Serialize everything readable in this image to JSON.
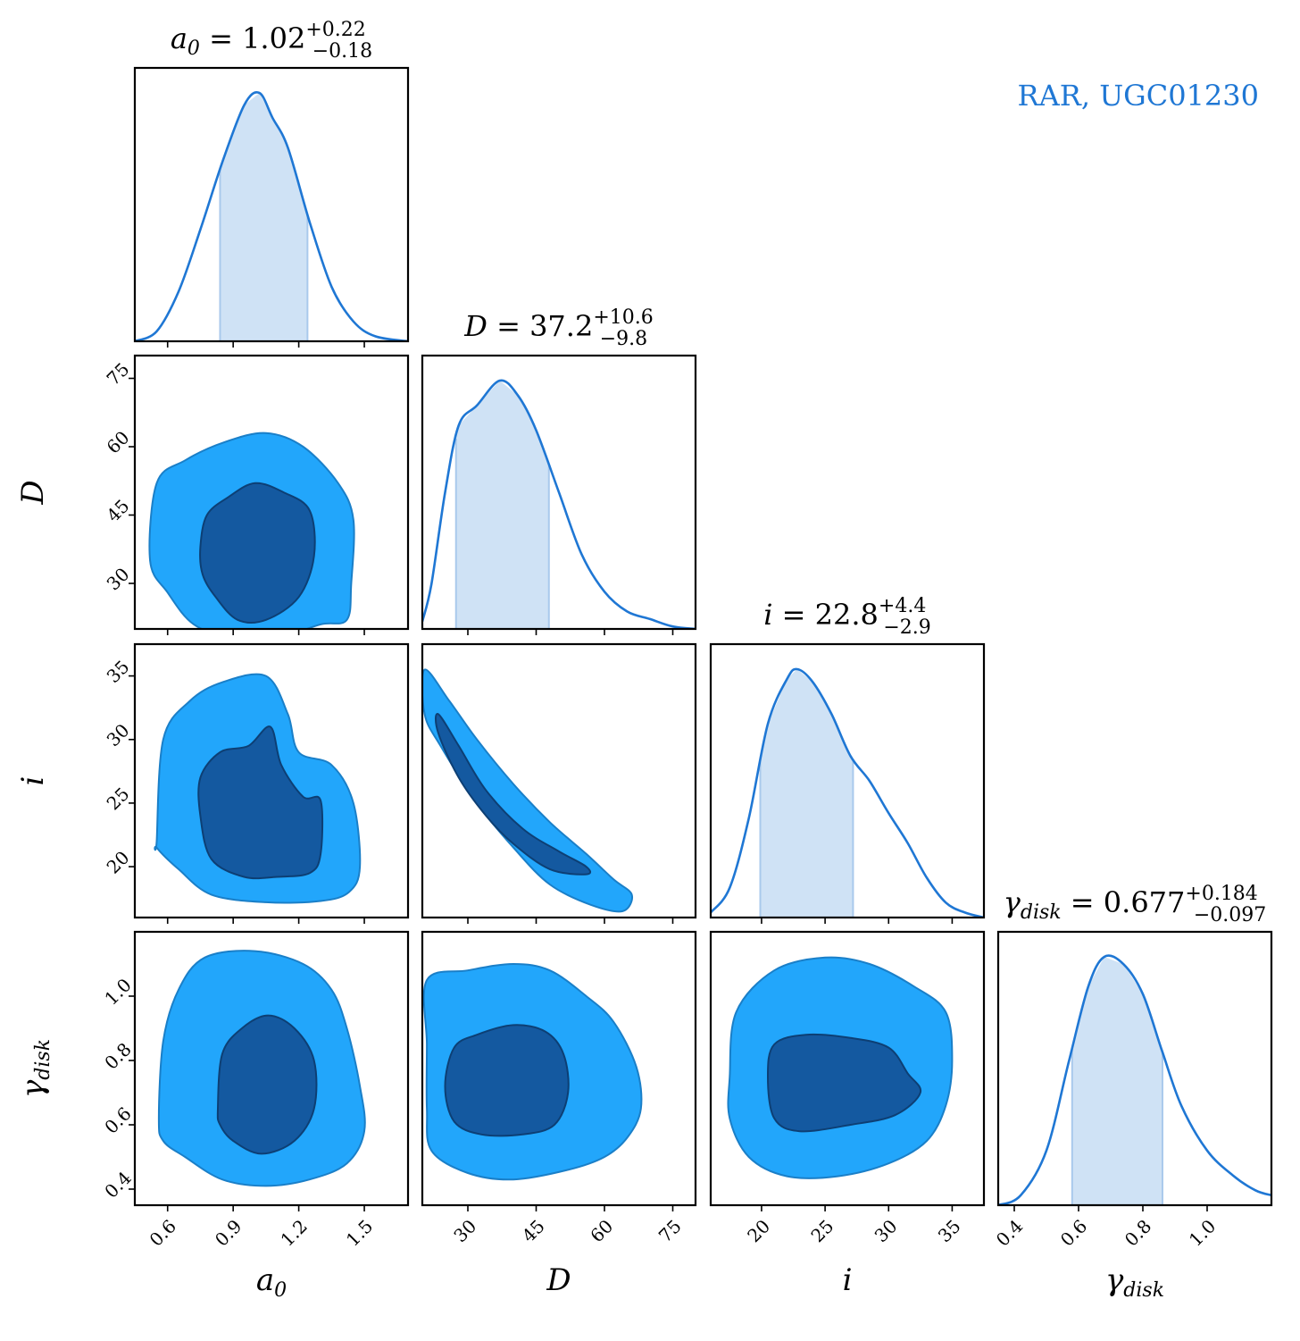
{
  "colors": {
    "accent": "#1f77d4",
    "fill_light": "#cfe2f5",
    "contour_outer": "#22a6fb",
    "contour_inner": "#1459a0",
    "contour_inner_edge": "#0d3f74"
  },
  "annotation": "RAR, UGC01230",
  "chart_data": {
    "type": "corner",
    "parameters": [
      {
        "id": "a0",
        "label_base": "a",
        "label_sub": "0",
        "median": "1.02",
        "plus": "+0.22",
        "minus": "−0.18",
        "range": [
          0.45,
          1.7
        ],
        "ticks": [
          0.6,
          0.9,
          1.2,
          1.5
        ],
        "tick_labels": [
          "0.6",
          "0.9",
          "1.2",
          "1.5"
        ]
      },
      {
        "id": "D",
        "label_base": "D",
        "label_sub": "",
        "median": "37.2",
        "plus": "+10.6",
        "minus": "−9.8",
        "range": [
          20,
          80
        ],
        "ticks": [
          30,
          45,
          60,
          75
        ],
        "tick_labels": [
          "30",
          "45",
          "60",
          "75"
        ]
      },
      {
        "id": "i",
        "label_base": "i",
        "label_sub": "",
        "median": "22.8",
        "plus": "+4.4",
        "minus": "−2.9",
        "range": [
          16,
          37.5
        ],
        "ticks": [
          20,
          25,
          30,
          35
        ],
        "tick_labels": [
          "20",
          "25",
          "30",
          "35"
        ]
      },
      {
        "id": "gamma_disk",
        "label_base": "γ",
        "label_sub": "disk",
        "median": "0.677",
        "plus": "+0.184",
        "minus": "−0.097",
        "range": [
          0.35,
          1.2
        ],
        "ticks": [
          0.4,
          0.6,
          0.8,
          1.0
        ],
        "tick_labels": [
          "0.4",
          "0.6",
          "0.8",
          "1.0"
        ]
      }
    ],
    "marginals": [
      {
        "param": "a0",
        "x": [
          0.45,
          0.55,
          0.65,
          0.75,
          0.85,
          0.95,
          1.02,
          1.08,
          1.15,
          1.25,
          1.35,
          1.45,
          1.55,
          1.7
        ],
        "density": [
          0.0,
          0.04,
          0.2,
          0.45,
          0.72,
          0.95,
          1.0,
          0.9,
          0.78,
          0.48,
          0.22,
          0.08,
          0.02,
          0.0
        ],
        "band": [
          0.84,
          1.24
        ]
      },
      {
        "param": "D",
        "x": [
          20,
          22,
          25,
          28,
          32,
          37,
          41,
          45,
          50,
          55,
          60,
          65,
          70,
          75,
          80
        ],
        "density": [
          0.03,
          0.18,
          0.55,
          0.82,
          0.9,
          1.0,
          0.94,
          0.8,
          0.55,
          0.3,
          0.15,
          0.07,
          0.04,
          0.01,
          0.0
        ],
        "band": [
          27.4,
          47.8
        ]
      },
      {
        "param": "i",
        "x": [
          16,
          17.5,
          19,
          20.5,
          22,
          22.8,
          24,
          25.5,
          27,
          28.5,
          30,
          31.5,
          33,
          34.5,
          36,
          37.5
        ],
        "density": [
          0.02,
          0.12,
          0.4,
          0.78,
          0.96,
          1.0,
          0.95,
          0.82,
          0.65,
          0.55,
          0.42,
          0.3,
          0.16,
          0.06,
          0.02,
          0.0
        ],
        "band": [
          19.9,
          27.2
        ]
      },
      {
        "param": "gamma_disk",
        "x": [
          0.35,
          0.42,
          0.5,
          0.57,
          0.63,
          0.68,
          0.74,
          0.8,
          0.86,
          0.92,
          1.0,
          1.08,
          1.15,
          1.2
        ],
        "density": [
          0.0,
          0.04,
          0.22,
          0.58,
          0.88,
          1.0,
          0.97,
          0.85,
          0.62,
          0.4,
          0.22,
          0.12,
          0.06,
          0.04
        ],
        "band": [
          0.58,
          0.861
        ]
      }
    ],
    "contours": [
      {
        "x": "a0",
        "y": "D",
        "outer": [
          [
            0.52,
            35
          ],
          [
            0.55,
            52
          ],
          [
            0.68,
            57
          ],
          [
            0.86,
            61
          ],
          [
            1.05,
            63
          ],
          [
            1.22,
            60
          ],
          [
            1.38,
            52
          ],
          [
            1.45,
            44
          ],
          [
            1.44,
            30
          ],
          [
            1.42,
            22
          ],
          [
            1.3,
            21
          ],
          [
            1.1,
            18
          ],
          [
            0.9,
            18
          ],
          [
            0.72,
            21
          ],
          [
            0.6,
            28
          ]
        ],
        "inner": [
          [
            0.75,
            38
          ],
          [
            0.78,
            45
          ],
          [
            0.88,
            49
          ],
          [
            1.0,
            52
          ],
          [
            1.13,
            50
          ],
          [
            1.25,
            46
          ],
          [
            1.27,
            36
          ],
          [
            1.2,
            27
          ],
          [
            1.05,
            22
          ],
          [
            0.92,
            22
          ],
          [
            0.82,
            27
          ],
          [
            0.76,
            32
          ]
        ]
      },
      {
        "x": "a0",
        "y": "i",
        "outer": [
          [
            0.55,
            22
          ],
          [
            0.58,
            30
          ],
          [
            0.7,
            33
          ],
          [
            0.85,
            34.5
          ],
          [
            1.05,
            35
          ],
          [
            1.15,
            32
          ],
          [
            1.2,
            29
          ],
          [
            1.35,
            28
          ],
          [
            1.45,
            25
          ],
          [
            1.48,
            20
          ],
          [
            1.43,
            18
          ],
          [
            1.3,
            17.3
          ],
          [
            1.05,
            17.2
          ],
          [
            0.8,
            17.8
          ],
          [
            0.65,
            19.8
          ],
          [
            0.55,
            21.5
          ]
        ],
        "inner": [
          [
            0.75,
            27
          ],
          [
            0.84,
            29
          ],
          [
            0.97,
            29.5
          ],
          [
            1.07,
            31
          ],
          [
            1.12,
            28
          ],
          [
            1.22,
            25.5
          ],
          [
            1.3,
            25.2
          ],
          [
            1.3,
            21
          ],
          [
            1.25,
            19.5
          ],
          [
            1.1,
            19.2
          ],
          [
            0.95,
            19.2
          ],
          [
            0.8,
            20.6
          ],
          [
            0.75,
            24
          ]
        ]
      },
      {
        "x": "D",
        "y": "i",
        "outer": [
          [
            20.5,
            35.5
          ],
          [
            26,
            33
          ],
          [
            32,
            30
          ],
          [
            40,
            26.5
          ],
          [
            48,
            23.5
          ],
          [
            56,
            21
          ],
          [
            62,
            19
          ],
          [
            66,
            17.8
          ],
          [
            64,
            16.5
          ],
          [
            57,
            17
          ],
          [
            48,
            18.6
          ],
          [
            40,
            21.5
          ],
          [
            32,
            25
          ],
          [
            24,
            29.5
          ],
          [
            20.5,
            32
          ]
        ],
        "inner": [
          [
            23.5,
            32
          ],
          [
            28,
            29.5
          ],
          [
            34,
            26
          ],
          [
            42,
            23
          ],
          [
            50,
            21.2
          ],
          [
            56,
            20
          ],
          [
            56,
            19.4
          ],
          [
            48,
            19.8
          ],
          [
            40,
            21.8
          ],
          [
            34,
            24
          ],
          [
            28,
            27
          ],
          [
            23.5,
            30.5
          ]
        ]
      },
      {
        "x": "a0",
        "y": "gamma_disk",
        "outer": [
          [
            0.56,
            0.62
          ],
          [
            0.58,
            0.86
          ],
          [
            0.65,
            1.02
          ],
          [
            0.77,
            1.12
          ],
          [
            1.0,
            1.14
          ],
          [
            1.22,
            1.1
          ],
          [
            1.35,
            1.02
          ],
          [
            1.42,
            0.9
          ],
          [
            1.48,
            0.72
          ],
          [
            1.5,
            0.58
          ],
          [
            1.42,
            0.48
          ],
          [
            1.25,
            0.43
          ],
          [
            1.05,
            0.41
          ],
          [
            0.85,
            0.43
          ],
          [
            0.68,
            0.5
          ],
          [
            0.58,
            0.55
          ]
        ],
        "inner": [
          [
            0.83,
            0.65
          ],
          [
            0.85,
            0.82
          ],
          [
            0.94,
            0.9
          ],
          [
            1.06,
            0.94
          ],
          [
            1.18,
            0.9
          ],
          [
            1.27,
            0.8
          ],
          [
            1.27,
            0.65
          ],
          [
            1.18,
            0.55
          ],
          [
            1.03,
            0.51
          ],
          [
            0.9,
            0.55
          ],
          [
            0.84,
            0.6
          ]
        ]
      },
      {
        "x": "D",
        "y": "gamma_disk",
        "outer": [
          [
            21,
            0.85
          ],
          [
            21,
            1.05
          ],
          [
            30,
            1.08
          ],
          [
            40,
            1.1
          ],
          [
            48,
            1.08
          ],
          [
            56,
            1.0
          ],
          [
            62,
            0.92
          ],
          [
            67,
            0.78
          ],
          [
            68,
            0.65
          ],
          [
            65,
            0.56
          ],
          [
            60,
            0.5
          ],
          [
            52,
            0.46
          ],
          [
            40,
            0.43
          ],
          [
            30,
            0.45
          ],
          [
            22,
            0.52
          ],
          [
            21,
            0.65
          ]
        ],
        "inner": [
          [
            25,
            0.72
          ],
          [
            27,
            0.84
          ],
          [
            32,
            0.88
          ],
          [
            40,
            0.91
          ],
          [
            47,
            0.89
          ],
          [
            51,
            0.82
          ],
          [
            52,
            0.7
          ],
          [
            49,
            0.6
          ],
          [
            42,
            0.57
          ],
          [
            33,
            0.57
          ],
          [
            27,
            0.61
          ]
        ]
      },
      {
        "x": "i",
        "y": "gamma_disk",
        "outer": [
          [
            17.5,
            0.75
          ],
          [
            18,
            0.95
          ],
          [
            21,
            1.08
          ],
          [
            25,
            1.12
          ],
          [
            28.5,
            1.1
          ],
          [
            32,
            1.03
          ],
          [
            34.5,
            0.95
          ],
          [
            35,
            0.8
          ],
          [
            34.5,
            0.66
          ],
          [
            33,
            0.55
          ],
          [
            30,
            0.48
          ],
          [
            26,
            0.44
          ],
          [
            22,
            0.44
          ],
          [
            19,
            0.5
          ],
          [
            17.5,
            0.62
          ]
        ],
        "inner": [
          [
            20.5,
            0.75
          ],
          [
            21,
            0.85
          ],
          [
            23.5,
            0.88
          ],
          [
            27,
            0.87
          ],
          [
            30,
            0.84
          ],
          [
            31.5,
            0.76
          ],
          [
            32.5,
            0.7
          ],
          [
            30.5,
            0.63
          ],
          [
            27,
            0.6
          ],
          [
            23,
            0.58
          ],
          [
            21,
            0.62
          ]
        ]
      }
    ]
  }
}
